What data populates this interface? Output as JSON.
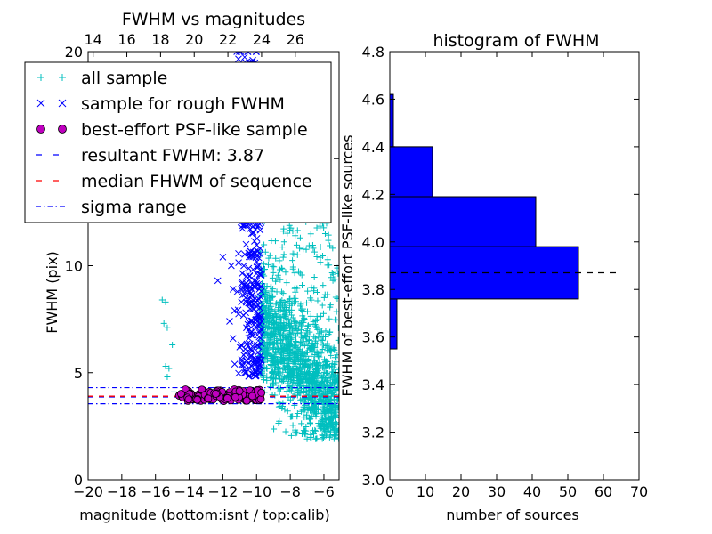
{
  "chart_data": [
    {
      "type": "scatter",
      "title": "FWHM vs magnitudes",
      "xlabel": "magnitude (bottom:isnt / top:calib)",
      "ylabel": "FWHM (pix)",
      "xlim": [
        -20,
        -5.1
      ],
      "ylim": [
        0,
        20
      ],
      "xticks": [
        "−20",
        "−18",
        "−16",
        "−14",
        "−12",
        "−10",
        "−8",
        "−6"
      ],
      "xtick_values": [
        -20,
        -18,
        -16,
        -14,
        -12,
        -10,
        -8,
        -6
      ],
      "yticks": [
        "0",
        "5",
        "10",
        "15",
        "20"
      ],
      "ytick_values": [
        0,
        5,
        10,
        15,
        20
      ],
      "top_axis_ticks": [
        "14",
        "16",
        "18",
        "20",
        "22",
        "24",
        "26"
      ],
      "top_axis_offset": 33.7,
      "grid": false,
      "legend_position": "top-left",
      "legend": [
        {
          "label": "all sample",
          "marker": "plus",
          "color": "#00bfbf"
        },
        {
          "label": "sample for rough FWHM",
          "marker": "x",
          "color": "#0000ff"
        },
        {
          "label": "best-effort PSF-like sample",
          "marker": "circle",
          "color": "#bf00bf"
        },
        {
          "label": "resultant FWHM: 3.87",
          "marker": "dashed-line",
          "color": "#0000ff"
        },
        {
          "label": "median FHWM of sequence",
          "marker": "dashed-line",
          "color": "#ff0000"
        },
        {
          "label": "sigma range",
          "marker": "dashdot-line",
          "color": "#0000ff"
        }
      ],
      "series": [
        {
          "name": "all sample",
          "region": {
            "mag_range": [
              -9.8,
              -5.1
            ],
            "fwhm_range": [
              1.9,
              20
            ]
          },
          "sparse_points": [
            [
              -15.6,
              8.4
            ],
            [
              -15.4,
              8.3
            ],
            [
              -15.5,
              7.3
            ],
            [
              -15.3,
              7.1
            ],
            [
              -15.0,
              6.3
            ],
            [
              -15.4,
              5.3
            ],
            [
              -15.2,
              5.2
            ],
            [
              -15.3,
              4.8
            ],
            [
              -14.9,
              4.1
            ],
            [
              -13.2,
              3.9
            ],
            [
              -11.5,
              4.0
            ],
            [
              -10.5,
              3.9
            ],
            [
              -10.2,
              4.1
            ],
            [
              -7.6,
              2.2
            ],
            [
              -7.0,
              1.9
            ],
            [
              -6.2,
              2.4
            ],
            [
              -5.3,
              2.9
            ]
          ]
        },
        {
          "name": "sample for rough FWHM",
          "region": {
            "mag_range": [
              -11.7,
              -9.7
            ],
            "fwhm_range": [
              4.8,
              20
            ]
          },
          "sparse_points": [
            [
              -12.0,
              10.4
            ],
            [
              -12.3,
              9.3
            ],
            [
              -11.5,
              10.0
            ],
            [
              -11.4,
              8.9
            ],
            [
              -11.3,
              7.9
            ],
            [
              -11.6,
              7.4
            ],
            [
              -11.4,
              6.6
            ],
            [
              -11.0,
              6.2
            ],
            [
              -11.3,
              5.4
            ],
            [
              -10.7,
              5.0
            ],
            [
              -10.6,
              7.1
            ],
            [
              -10.9,
              8.3
            ],
            [
              -10.8,
              11.9
            ],
            [
              -11.0,
              13.1
            ],
            [
              -10.6,
              16.2
            ],
            [
              -10.4,
              19.5
            ]
          ]
        },
        {
          "name": "best-effort PSF-like sample",
          "region": {
            "mag_range": [
              -14.6,
              -9.7
            ],
            "fwhm_range": [
              3.7,
              4.4
            ]
          }
        }
      ],
      "lines": [
        {
          "name": "resultant FWHM: 3.87",
          "y": 3.87
        },
        {
          "name": "median FHWM of sequence",
          "y": 3.9
        },
        {
          "name": "sigma range",
          "y": [
            3.55,
            4.3
          ]
        }
      ]
    },
    {
      "type": "bar",
      "orientation": "horizontal",
      "title": "histogram of FWHM",
      "xlabel": "number of sources",
      "ylabel": "FWHM of best-effort PSF-like sources",
      "xlim": [
        0,
        70
      ],
      "ylim": [
        3.0,
        4.8
      ],
      "xticks": [
        "0",
        "10",
        "20",
        "30",
        "40",
        "50",
        "60",
        "70"
      ],
      "xtick_values": [
        0,
        10,
        20,
        30,
        40,
        50,
        60,
        70
      ],
      "yticks": [
        "3.0",
        "3.2",
        "3.4",
        "3.6",
        "3.8",
        "4.0",
        "4.2",
        "4.4",
        "4.6",
        "4.8"
      ],
      "ytick_values": [
        3.0,
        3.2,
        3.4,
        3.6,
        3.8,
        4.0,
        4.2,
        4.4,
        4.6,
        4.8
      ],
      "grid": false,
      "bins": [
        {
          "from": 3.55,
          "to": 3.76,
          "count": 2
        },
        {
          "from": 3.76,
          "to": 3.98,
          "count": 53
        },
        {
          "from": 3.98,
          "to": 4.19,
          "count": 41
        },
        {
          "from": 4.19,
          "to": 4.4,
          "count": 12
        },
        {
          "from": 4.4,
          "to": 4.62,
          "count": 1
        }
      ],
      "bar_color": "#0000ff",
      "reference_line": {
        "y": 3.87,
        "x_range": [
          0,
          64
        ],
        "style": "dashed",
        "color": "#000000"
      }
    }
  ]
}
